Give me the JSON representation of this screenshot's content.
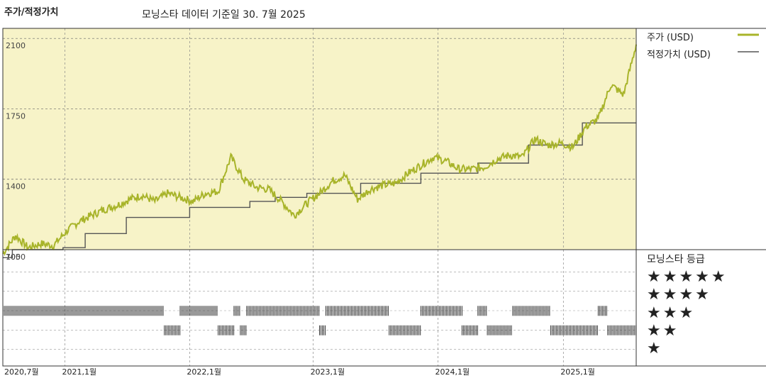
{
  "header": {
    "title": "주가/적정가치",
    "subtitle": "모닝스타 데이터 기준일 30. 7월 2025"
  },
  "legend": {
    "price_label": "주가 (USD)",
    "fair_label": "적정가치 (USD)",
    "rating_title": "모닝스타 등급",
    "price_color": "#a8b42a",
    "fair_color": "#555555",
    "panel_bg": "#f7f3c8"
  },
  "ratings": {
    "rows": [
      "★★★★★",
      "★★★★",
      "★★★",
      "★★",
      "★"
    ]
  },
  "chart_data": [
    {
      "type": "line",
      "ylim": [
        1050,
        2150
      ],
      "y_ticks": [
        "2100",
        "1750",
        "1400",
        "1050"
      ],
      "x_ticks": [
        "2020,7월",
        "2021,1월",
        "2022,1월",
        "2023,1월",
        "2024,1월",
        "2025,1월"
      ],
      "grid": true,
      "legend_position": "right",
      "series": [
        {
          "name": "주가 (USD)",
          "t": [
            0,
            0.02,
            0.04,
            0.06,
            0.08,
            0.1,
            0.12,
            0.14,
            0.16,
            0.18,
            0.2,
            0.22,
            0.24,
            0.26,
            0.28,
            0.3,
            0.32,
            0.34,
            0.36,
            0.38,
            0.4,
            0.42,
            0.44,
            0.46,
            0.48,
            0.5,
            0.52,
            0.54,
            0.56,
            0.58,
            0.6,
            0.62,
            0.64,
            0.66,
            0.68,
            0.7,
            0.72,
            0.74,
            0.76,
            0.78,
            0.8,
            0.82,
            0.84,
            0.86,
            0.88,
            0.9,
            0.92,
            0.94,
            0.96,
            0.98,
            1.0
          ],
          "values": [
            1030,
            1120,
            1060,
            1080,
            1070,
            1140,
            1190,
            1220,
            1250,
            1270,
            1300,
            1320,
            1290,
            1330,
            1310,
            1290,
            1330,
            1340,
            1510,
            1400,
            1360,
            1350,
            1290,
            1220,
            1280,
            1330,
            1390,
            1420,
            1300,
            1350,
            1370,
            1380,
            1430,
            1470,
            1510,
            1490,
            1450,
            1450,
            1460,
            1500,
            1520,
            1510,
            1600,
            1570,
            1580,
            1560,
            1660,
            1700,
            1870,
            1820,
            2070
          ]
        },
        {
          "name": "적정가치 (USD)",
          "t": [
            0,
            0.015,
            0.015,
            0.095,
            0.095,
            0.13,
            0.13,
            0.195,
            0.195,
            0.295,
            0.295,
            0.39,
            0.39,
            0.43,
            0.43,
            0.48,
            0.48,
            0.565,
            0.565,
            0.66,
            0.66,
            0.75,
            0.75,
            0.83,
            0.83,
            0.915,
            0.915,
            1.0
          ],
          "values": [
            1010,
            1010,
            1050,
            1050,
            1060,
            1060,
            1130,
            1130,
            1210,
            1210,
            1260,
            1260,
            1290,
            1290,
            1310,
            1310,
            1330,
            1330,
            1380,
            1380,
            1430,
            1430,
            1480,
            1480,
            1570,
            1570,
            1680,
            1680
          ]
        }
      ]
    },
    {
      "type": "bar",
      "title": "모닝스타 등급",
      "y_label_top": "700",
      "categories": [
        "★★★★★",
        "★★★★",
        "★★★",
        "★★",
        "★"
      ],
      "periods": [
        {
          "rating": 3,
          "start": 0.0,
          "end": 0.255
        },
        {
          "rating": 2,
          "start": 0.255,
          "end": 0.28
        },
        {
          "rating": 3,
          "start": 0.28,
          "end": 0.34
        },
        {
          "rating": 2,
          "start": 0.34,
          "end": 0.365
        },
        {
          "rating": 3,
          "start": 0.365,
          "end": 0.375
        },
        {
          "rating": 2,
          "start": 0.375,
          "end": 0.385
        },
        {
          "rating": 3,
          "start": 0.385,
          "end": 0.5
        },
        {
          "rating": 2,
          "start": 0.5,
          "end": 0.51
        },
        {
          "rating": 3,
          "start": 0.51,
          "end": 0.61
        },
        {
          "rating": 2,
          "start": 0.61,
          "end": 0.66
        },
        {
          "rating": 3,
          "start": 0.66,
          "end": 0.725
        },
        {
          "rating": 2,
          "start": 0.725,
          "end": 0.75
        },
        {
          "rating": 3,
          "start": 0.75,
          "end": 0.765
        },
        {
          "rating": 2,
          "start": 0.765,
          "end": 0.805
        },
        {
          "rating": 3,
          "start": 0.805,
          "end": 0.865
        },
        {
          "rating": 2,
          "start": 0.865,
          "end": 0.94
        },
        {
          "rating": 3,
          "start": 0.94,
          "end": 0.955
        },
        {
          "rating": 2,
          "start": 0.955,
          "end": 1.0
        }
      ]
    }
  ]
}
